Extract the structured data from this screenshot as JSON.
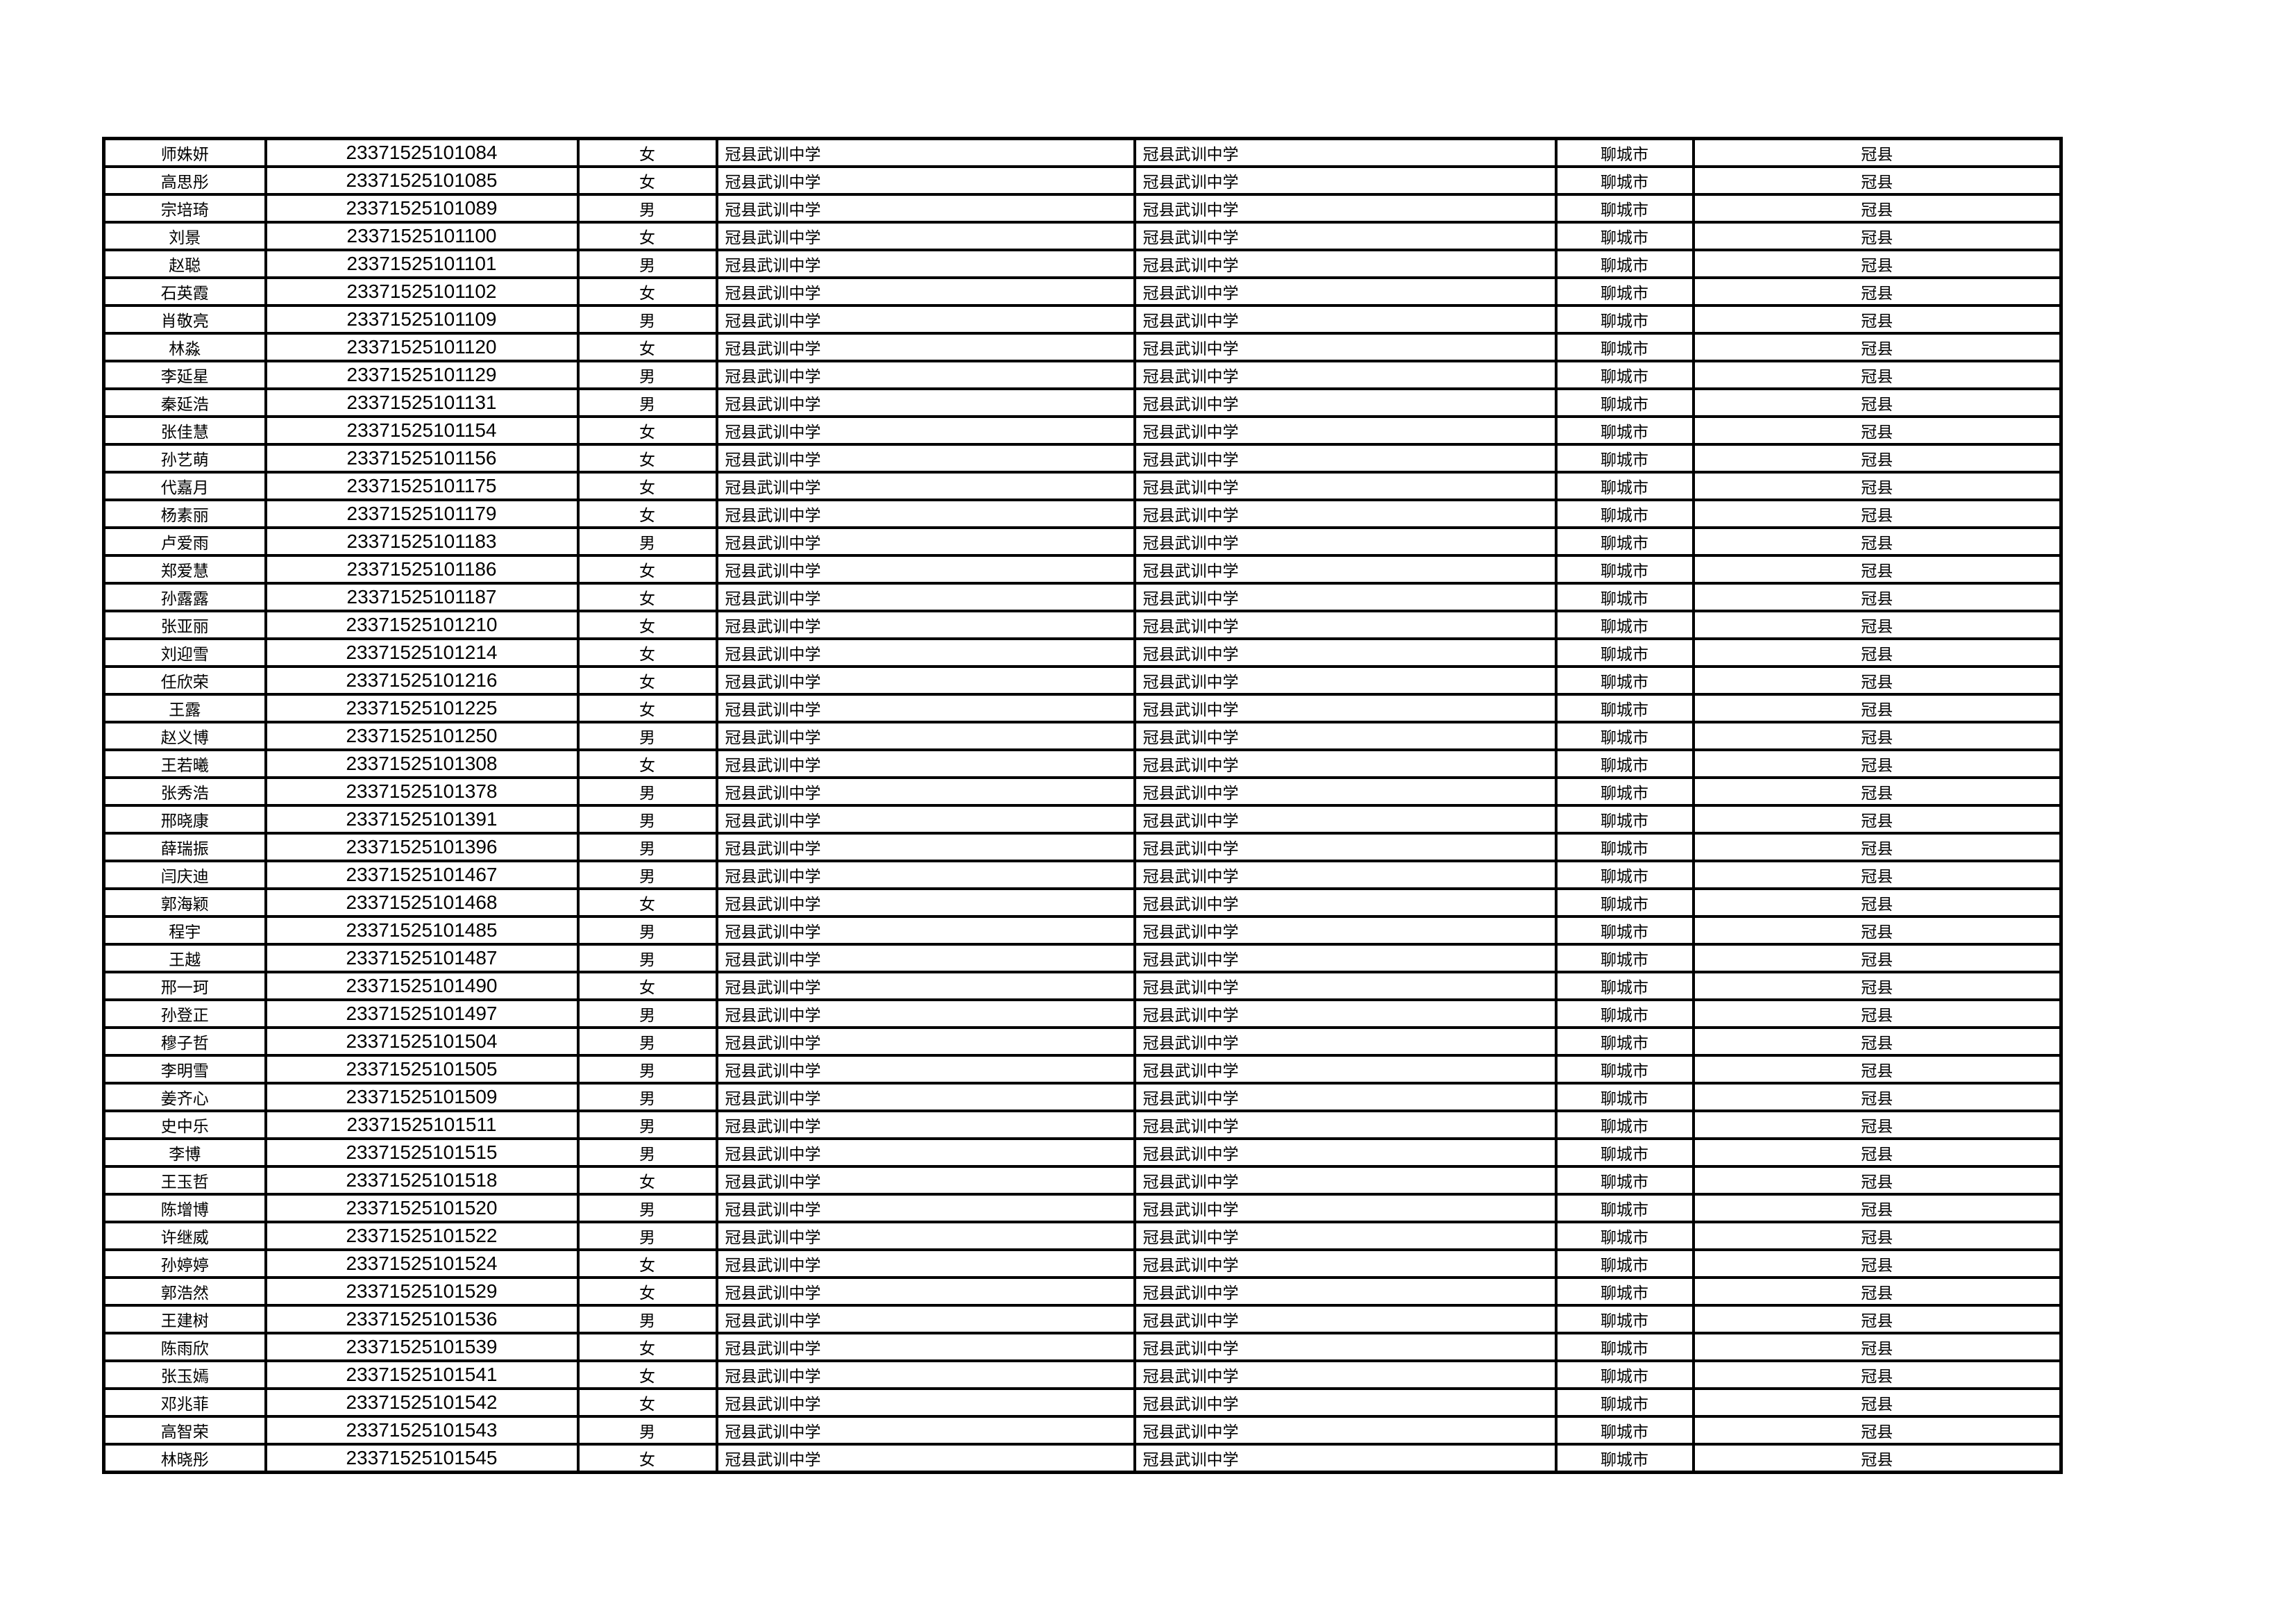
{
  "page": {
    "background_color": "#ffffff",
    "border_color": "#000000",
    "text_color": "#000000"
  },
  "table": {
    "rows": [
      [
        "师姝妍",
        "23371525101084",
        "女",
        "冠县武训中学",
        "冠县武训中学",
        "聊城市",
        "冠县"
      ],
      [
        "高思彤",
        "23371525101085",
        "女",
        "冠县武训中学",
        "冠县武训中学",
        "聊城市",
        "冠县"
      ],
      [
        "宗培琦",
        "23371525101089",
        "男",
        "冠县武训中学",
        "冠县武训中学",
        "聊城市",
        "冠县"
      ],
      [
        "刘景",
        "23371525101100",
        "女",
        "冠县武训中学",
        "冠县武训中学",
        "聊城市",
        "冠县"
      ],
      [
        "赵聪",
        "23371525101101",
        "男",
        "冠县武训中学",
        "冠县武训中学",
        "聊城市",
        "冠县"
      ],
      [
        "石英霞",
        "23371525101102",
        "女",
        "冠县武训中学",
        "冠县武训中学",
        "聊城市",
        "冠县"
      ],
      [
        "肖敬亮",
        "23371525101109",
        "男",
        "冠县武训中学",
        "冠县武训中学",
        "聊城市",
        "冠县"
      ],
      [
        "林淼",
        "23371525101120",
        "女",
        "冠县武训中学",
        "冠县武训中学",
        "聊城市",
        "冠县"
      ],
      [
        "李延星",
        "23371525101129",
        "男",
        "冠县武训中学",
        "冠县武训中学",
        "聊城市",
        "冠县"
      ],
      [
        "秦延浩",
        "23371525101131",
        "男",
        "冠县武训中学",
        "冠县武训中学",
        "聊城市",
        "冠县"
      ],
      [
        "张佳慧",
        "23371525101154",
        "女",
        "冠县武训中学",
        "冠县武训中学",
        "聊城市",
        "冠县"
      ],
      [
        "孙艺萌",
        "23371525101156",
        "女",
        "冠县武训中学",
        "冠县武训中学",
        "聊城市",
        "冠县"
      ],
      [
        "代嘉月",
        "23371525101175",
        "女",
        "冠县武训中学",
        "冠县武训中学",
        "聊城市",
        "冠县"
      ],
      [
        "杨素丽",
        "23371525101179",
        "女",
        "冠县武训中学",
        "冠县武训中学",
        "聊城市",
        "冠县"
      ],
      [
        "卢爱雨",
        "23371525101183",
        "男",
        "冠县武训中学",
        "冠县武训中学",
        "聊城市",
        "冠县"
      ],
      [
        "郑爱慧",
        "23371525101186",
        "女",
        "冠县武训中学",
        "冠县武训中学",
        "聊城市",
        "冠县"
      ],
      [
        "孙露露",
        "23371525101187",
        "女",
        "冠县武训中学",
        "冠县武训中学",
        "聊城市",
        "冠县"
      ],
      [
        "张亚丽",
        "23371525101210",
        "女",
        "冠县武训中学",
        "冠县武训中学",
        "聊城市",
        "冠县"
      ],
      [
        "刘迎雪",
        "23371525101214",
        "女",
        "冠县武训中学",
        "冠县武训中学",
        "聊城市",
        "冠县"
      ],
      [
        "任欣荣",
        "23371525101216",
        "女",
        "冠县武训中学",
        "冠县武训中学",
        "聊城市",
        "冠县"
      ],
      [
        "王露",
        "23371525101225",
        "女",
        "冠县武训中学",
        "冠县武训中学",
        "聊城市",
        "冠县"
      ],
      [
        "赵义博",
        "23371525101250",
        "男",
        "冠县武训中学",
        "冠县武训中学",
        "聊城市",
        "冠县"
      ],
      [
        "王若曦",
        "23371525101308",
        "女",
        "冠县武训中学",
        "冠县武训中学",
        "聊城市",
        "冠县"
      ],
      [
        "张秀浩",
        "23371525101378",
        "男",
        "冠县武训中学",
        "冠县武训中学",
        "聊城市",
        "冠县"
      ],
      [
        "邢晓康",
        "23371525101391",
        "男",
        "冠县武训中学",
        "冠县武训中学",
        "聊城市",
        "冠县"
      ],
      [
        "薛瑞振",
        "23371525101396",
        "男",
        "冠县武训中学",
        "冠县武训中学",
        "聊城市",
        "冠县"
      ],
      [
        "闫庆迪",
        "23371525101467",
        "男",
        "冠县武训中学",
        "冠县武训中学",
        "聊城市",
        "冠县"
      ],
      [
        "郭海颖",
        "23371525101468",
        "女",
        "冠县武训中学",
        "冠县武训中学",
        "聊城市",
        "冠县"
      ],
      [
        "程宇",
        "23371525101485",
        "男",
        "冠县武训中学",
        "冠县武训中学",
        "聊城市",
        "冠县"
      ],
      [
        "王越",
        "23371525101487",
        "男",
        "冠县武训中学",
        "冠县武训中学",
        "聊城市",
        "冠县"
      ],
      [
        "邢一珂",
        "23371525101490",
        "女",
        "冠县武训中学",
        "冠县武训中学",
        "聊城市",
        "冠县"
      ],
      [
        "孙登正",
        "23371525101497",
        "男",
        "冠县武训中学",
        "冠县武训中学",
        "聊城市",
        "冠县"
      ],
      [
        "穆子哲",
        "23371525101504",
        "男",
        "冠县武训中学",
        "冠县武训中学",
        "聊城市",
        "冠县"
      ],
      [
        "李明雪",
        "23371525101505",
        "男",
        "冠县武训中学",
        "冠县武训中学",
        "聊城市",
        "冠县"
      ],
      [
        "姜齐心",
        "23371525101509",
        "男",
        "冠县武训中学",
        "冠县武训中学",
        "聊城市",
        "冠县"
      ],
      [
        "史中乐",
        "23371525101511",
        "男",
        "冠县武训中学",
        "冠县武训中学",
        "聊城市",
        "冠县"
      ],
      [
        "李博",
        "23371525101515",
        "男",
        "冠县武训中学",
        "冠县武训中学",
        "聊城市",
        "冠县"
      ],
      [
        "王玉哲",
        "23371525101518",
        "女",
        "冠县武训中学",
        "冠县武训中学",
        "聊城市",
        "冠县"
      ],
      [
        "陈增博",
        "23371525101520",
        "男",
        "冠县武训中学",
        "冠县武训中学",
        "聊城市",
        "冠县"
      ],
      [
        "许继威",
        "23371525101522",
        "男",
        "冠县武训中学",
        "冠县武训中学",
        "聊城市",
        "冠县"
      ],
      [
        "孙婷婷",
        "23371525101524",
        "女",
        "冠县武训中学",
        "冠县武训中学",
        "聊城市",
        "冠县"
      ],
      [
        "郭浩然",
        "23371525101529",
        "女",
        "冠县武训中学",
        "冠县武训中学",
        "聊城市",
        "冠县"
      ],
      [
        "王建树",
        "23371525101536",
        "男",
        "冠县武训中学",
        "冠县武训中学",
        "聊城市",
        "冠县"
      ],
      [
        "陈雨欣",
        "23371525101539",
        "女",
        "冠县武训中学",
        "冠县武训中学",
        "聊城市",
        "冠县"
      ],
      [
        "张玉嫣",
        "23371525101541",
        "女",
        "冠县武训中学",
        "冠县武训中学",
        "聊城市",
        "冠县"
      ],
      [
        "邓兆菲",
        "23371525101542",
        "女",
        "冠县武训中学",
        "冠县武训中学",
        "聊城市",
        "冠县"
      ],
      [
        "高智荣",
        "23371525101543",
        "男",
        "冠县武训中学",
        "冠县武训中学",
        "聊城市",
        "冠县"
      ],
      [
        "林晓彤",
        "23371525101545",
        "女",
        "冠县武训中学",
        "冠县武训中学",
        "聊城市",
        "冠县"
      ]
    ]
  }
}
